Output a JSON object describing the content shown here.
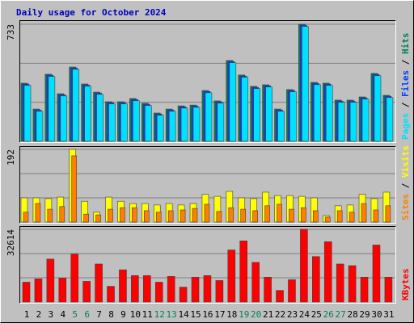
{
  "chart_data": [
    {
      "type": "bar",
      "title": "Daily usage for October 2024",
      "ylim": [
        0,
        733
      ],
      "yticks": [
        733
      ],
      "legend_separator": " / ",
      "series": [
        {
          "name": "Hits",
          "color": "#00805c",
          "values": [
            364,
            202,
            420,
            298,
            465,
            359,
            308,
            248,
            248,
            268,
            238,
            177,
            202,
            222,
            227,
            318,
            253,
            506,
            415,
            344,
            354,
            202,
            324,
            733,
            369,
            364,
            258,
            258,
            278,
            425,
            288
          ]
        },
        {
          "name": "Files",
          "color": "#0040ff",
          "values": [
            358,
            196,
            414,
            292,
            459,
            353,
            302,
            242,
            242,
            262,
            232,
            171,
            196,
            216,
            221,
            312,
            247,
            500,
            409,
            338,
            348,
            196,
            318,
            727,
            363,
            358,
            252,
            252,
            272,
            419,
            282
          ]
        },
        {
          "name": "Pages",
          "color": "#00e0ff",
          "values": [
            350,
            188,
            406,
            284,
            451,
            345,
            294,
            234,
            234,
            254,
            224,
            163,
            188,
            208,
            213,
            304,
            239,
            492,
            401,
            330,
            340,
            188,
            310,
            719,
            355,
            350,
            244,
            244,
            264,
            411,
            274
          ]
        }
      ]
    },
    {
      "type": "bar",
      "ylim": [
        0,
        192
      ],
      "yticks": [
        192
      ],
      "legend_separator": " / ",
      "series": [
        {
          "name": "Visits",
          "color": "#ffff00",
          "values": [
            64,
            64,
            62,
            66,
            192,
            55,
            26,
            66,
            55,
            49,
            49,
            45,
            49,
            45,
            49,
            73,
            68,
            81,
            64,
            62,
            79,
            70,
            70,
            68,
            64,
            17,
            43,
            45,
            73,
            62,
            79
          ]
        },
        {
          "name": "Sites",
          "color": "#ff8000",
          "values": [
            26,
            49,
            34,
            41,
            175,
            21,
            19,
            34,
            38,
            38,
            30,
            26,
            30,
            32,
            36,
            47,
            28,
            38,
            34,
            30,
            43,
            47,
            34,
            38,
            30,
            13,
            30,
            26,
            49,
            32,
            43
          ]
        }
      ]
    },
    {
      "type": "bar",
      "ylim": [
        0,
        32614
      ],
      "yticks": [
        32614
      ],
      "categories": [
        "1",
        "2",
        "3",
        "4",
        "5",
        "6",
        "7",
        "8",
        "9",
        "10",
        "11",
        "12",
        "13",
        "14",
        "15",
        "16",
        "17",
        "18",
        "19",
        "20",
        "21",
        "22",
        "23",
        "24",
        "25",
        "26",
        "27",
        "28",
        "29",
        "30",
        "31"
      ],
      "category_colors": [
        "#000000",
        "#000000",
        "#000000",
        "#000000",
        "#00805c",
        "#00805c",
        "#000000",
        "#000000",
        "#000000",
        "#000000",
        "#000000",
        "#00805c",
        "#00805c",
        "#000000",
        "#000000",
        "#000000",
        "#000000",
        "#000000",
        "#00805c",
        "#00805c",
        "#000000",
        "#000000",
        "#000000",
        "#000000",
        "#000000",
        "#00805c",
        "#00805c",
        "#000000",
        "#000000",
        "#000000",
        "#000000"
      ],
      "series": [
        {
          "name": "KBytes",
          "color": "#ff0000",
          "values": [
            8895,
            10377,
            19272,
            10748,
            21496,
            9265,
            17048,
            7042,
            14454,
            11860,
            11860,
            8895,
            11489,
            6671,
            11118,
            11860,
            9636,
            23349,
            27425,
            17789,
            11118,
            5189,
            10006,
            32614,
            20384,
            27055,
            17048,
            16307,
            11118,
            25572,
            11118
          ]
        }
      ]
    }
  ]
}
